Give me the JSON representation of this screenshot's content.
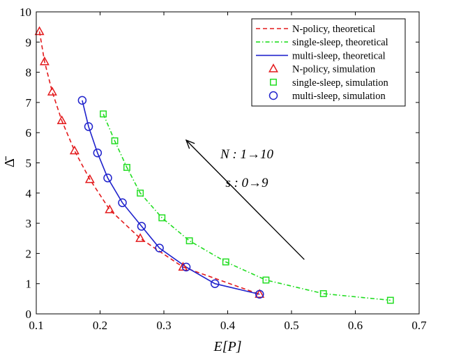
{
  "chart_data": {
    "type": "line",
    "title": "",
    "xlabel": "E[P]",
    "ylabel": "Δ̄",
    "xlim": [
      0.1,
      0.7
    ],
    "ylim": [
      0,
      10
    ],
    "xticks": [
      0.1,
      0.2,
      0.3,
      0.4,
      0.5,
      0.6,
      0.7
    ],
    "yticks": [
      0,
      1,
      2,
      3,
      4,
      5,
      6,
      7,
      8,
      9,
      10
    ],
    "xtick_labels": [
      "0.1",
      "0.2",
      "0.3",
      "0.4",
      "0.5",
      "0.6",
      "0.7"
    ],
    "ytick_labels": [
      "0",
      "1",
      "2",
      "3",
      "4",
      "5",
      "6",
      "7",
      "8",
      "9",
      "10"
    ],
    "grid": false,
    "legend_position": "top-right",
    "series": [
      {
        "name": "N-policy, theoretical",
        "kind": "line",
        "style": "dashed",
        "color": "#e31a1c",
        "x": [
          0.105,
          0.113,
          0.125,
          0.14,
          0.16,
          0.184,
          0.215,
          0.263,
          0.33,
          0.45
        ],
        "y": [
          9.35,
          8.35,
          7.35,
          6.4,
          5.4,
          4.45,
          3.45,
          2.5,
          1.55,
          0.65
        ]
      },
      {
        "name": "single-sleep, theoretical",
        "kind": "line",
        "style": "dashdot",
        "color": "#22dd22",
        "x": [
          0.205,
          0.223,
          0.242,
          0.263,
          0.297,
          0.34,
          0.397,
          0.46,
          0.55,
          0.655
        ],
        "y": [
          6.62,
          5.73,
          4.85,
          4.0,
          3.18,
          2.42,
          1.72,
          1.12,
          0.67,
          0.45
        ]
      },
      {
        "name": "multi-sleep, theoretical",
        "kind": "line",
        "style": "solid",
        "color": "#1f22cc",
        "x": [
          0.172,
          0.182,
          0.196,
          0.212,
          0.235,
          0.265,
          0.293,
          0.335,
          0.38,
          0.45
        ],
        "y": [
          7.07,
          6.2,
          5.33,
          4.5,
          3.68,
          2.9,
          2.18,
          1.55,
          1.0,
          0.65
        ]
      },
      {
        "name": "N-policy, simulation",
        "kind": "marker",
        "marker": "triangle",
        "color": "#e31a1c",
        "x": [
          0.105,
          0.113,
          0.125,
          0.14,
          0.16,
          0.184,
          0.215,
          0.263,
          0.33,
          0.45
        ],
        "y": [
          9.35,
          8.35,
          7.35,
          6.4,
          5.4,
          4.45,
          3.45,
          2.5,
          1.55,
          0.65
        ]
      },
      {
        "name": "single-sleep, simulation",
        "kind": "marker",
        "marker": "square",
        "color": "#22dd22",
        "x": [
          0.205,
          0.223,
          0.242,
          0.263,
          0.297,
          0.34,
          0.397,
          0.46,
          0.55,
          0.655
        ],
        "y": [
          6.62,
          5.73,
          4.85,
          4.0,
          3.18,
          2.42,
          1.72,
          1.12,
          0.67,
          0.45
        ]
      },
      {
        "name": "multi-sleep, simulation",
        "kind": "marker",
        "marker": "circle",
        "color": "#1f22cc",
        "x": [
          0.172,
          0.182,
          0.196,
          0.212,
          0.235,
          0.265,
          0.293,
          0.335,
          0.38,
          0.45
        ],
        "y": [
          7.07,
          6.2,
          5.33,
          4.5,
          3.68,
          2.9,
          2.18,
          1.55,
          1.0,
          0.65
        ]
      }
    ],
    "annotations": {
      "arrow": {
        "from": [
          0.52,
          1.8
        ],
        "to": [
          0.335,
          5.75
        ]
      },
      "lines": [
        {
          "text": "N : 1→10",
          "at": [
            0.43,
            5.15
          ]
        },
        {
          "text": "s : 0→9",
          "at": [
            0.43,
            4.2
          ]
        }
      ]
    }
  }
}
